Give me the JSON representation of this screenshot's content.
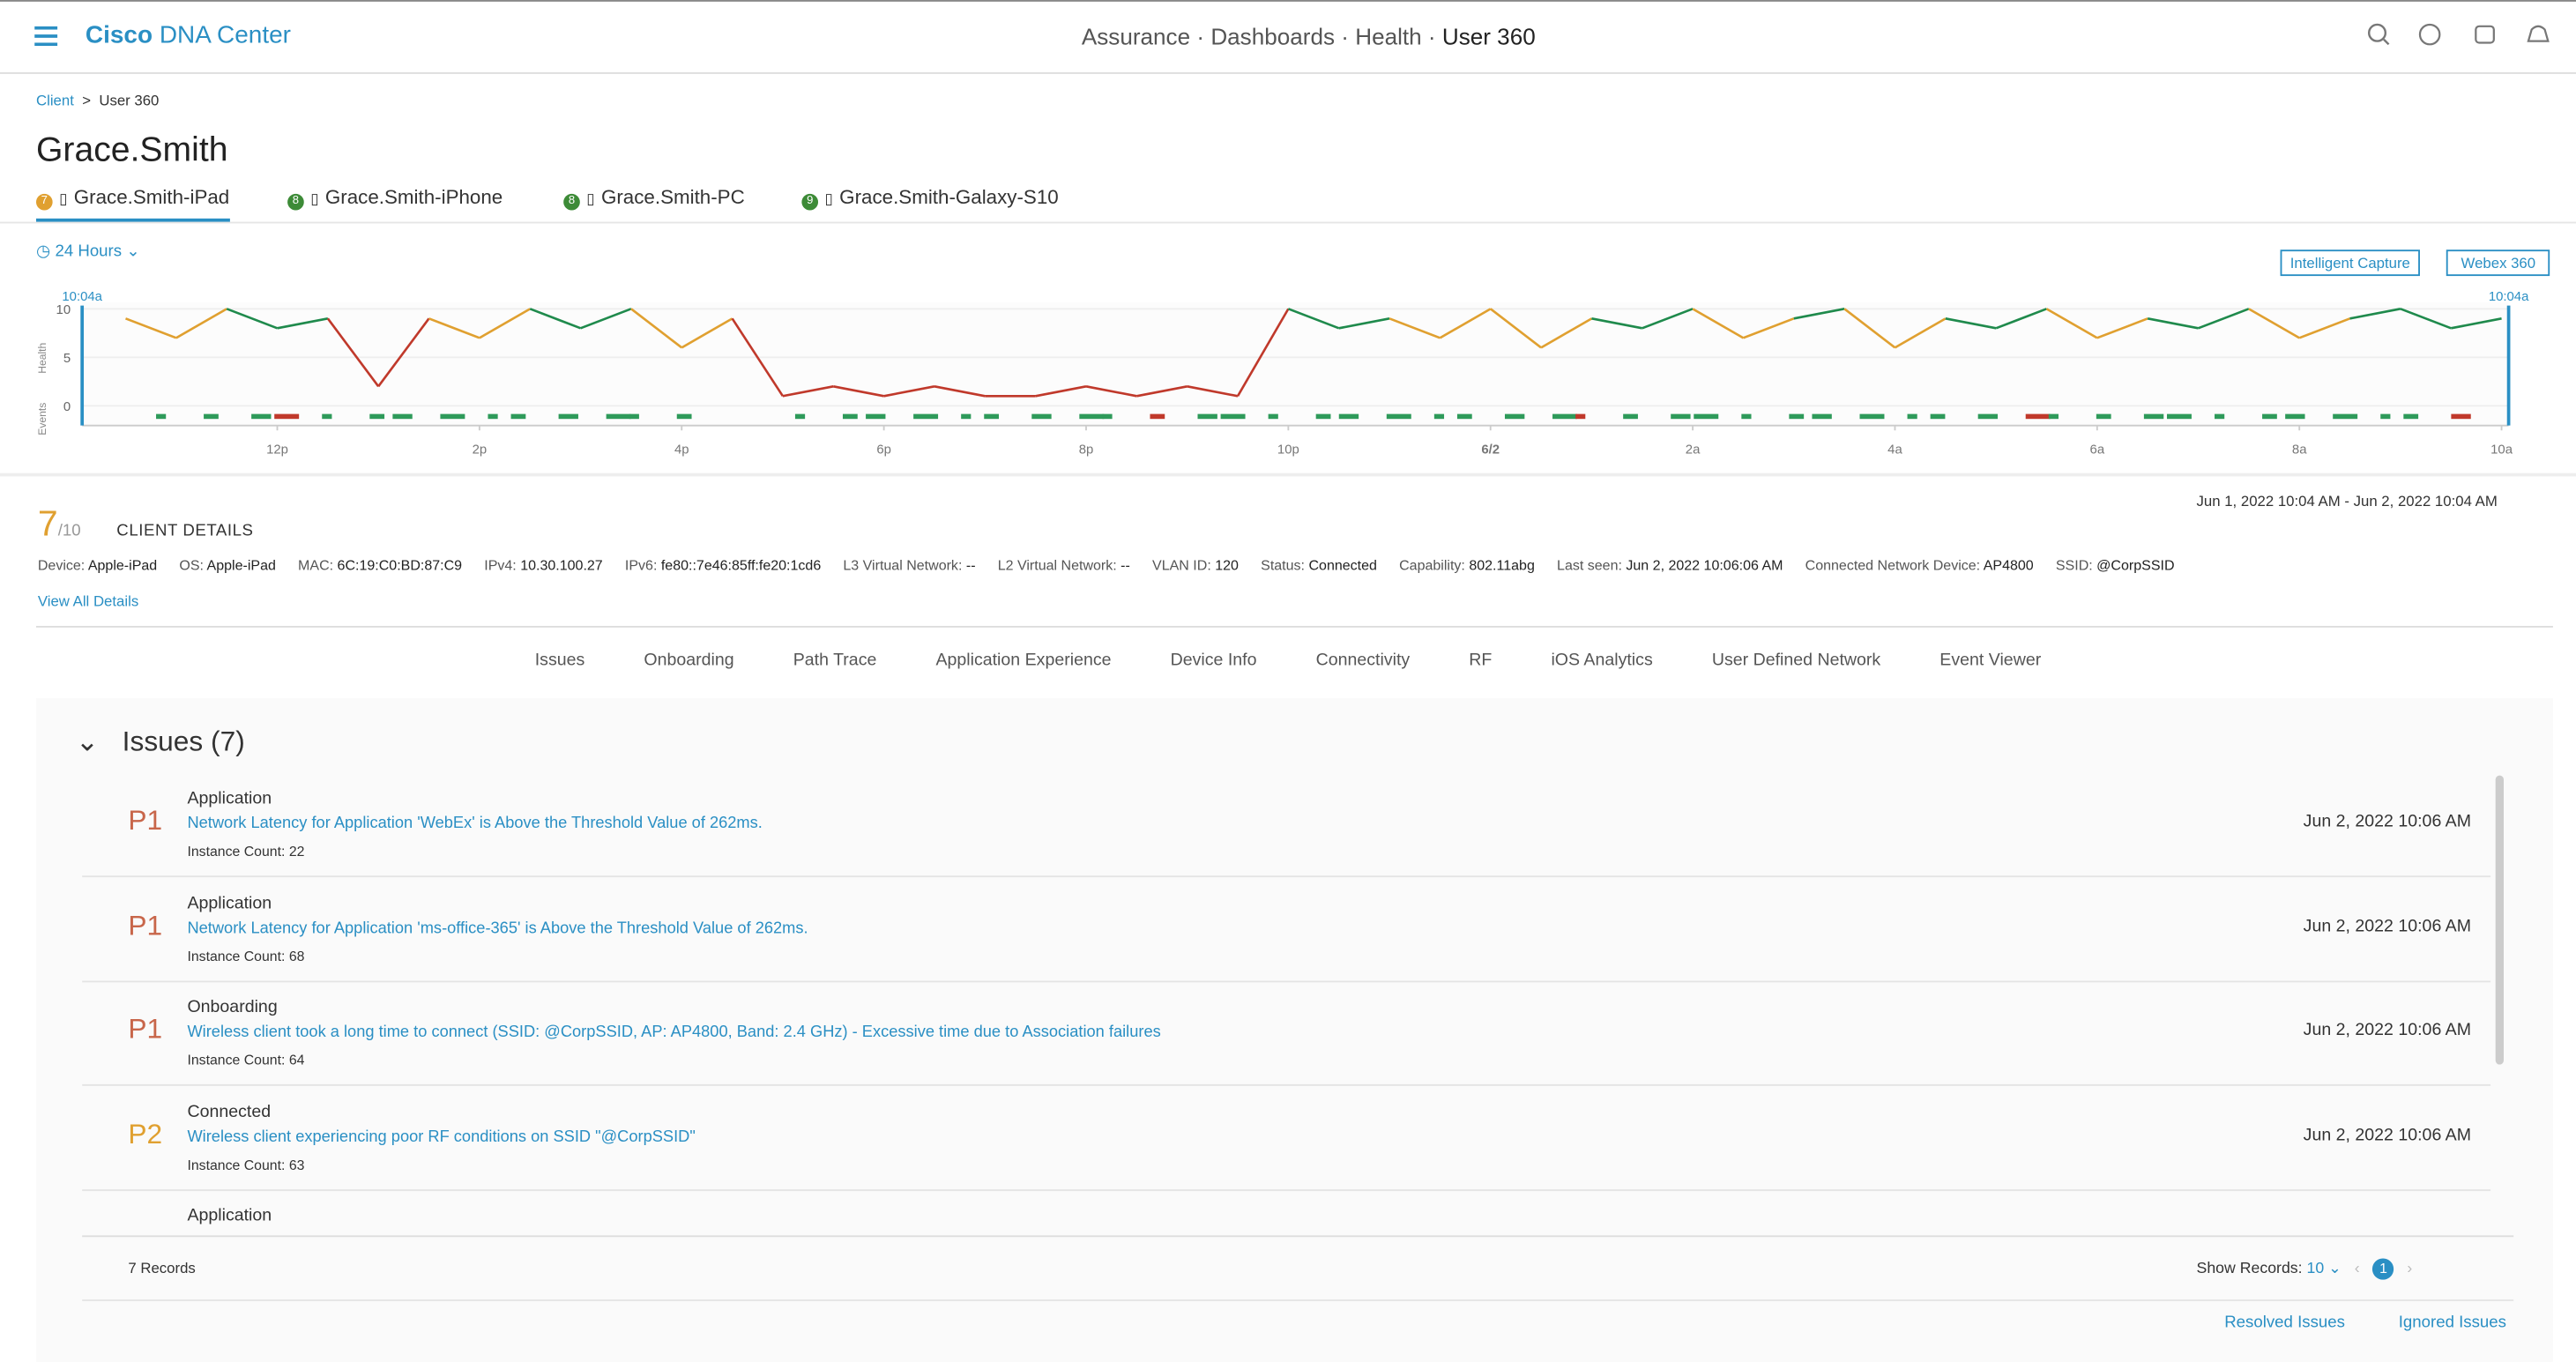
{
  "header": {
    "brand": "Cisco",
    "product": "DNA Center",
    "path": [
      "Assurance",
      "Dashboards",
      "Health",
      "User 360"
    ]
  },
  "breadcrumb": [
    "Client",
    "User 360"
  ],
  "user": "Grace.Smith",
  "devices": [
    {
      "score": 7,
      "name": "Grace.Smith-iPad"
    },
    {
      "score": 8,
      "name": "Grace.Smith-iPhone"
    },
    {
      "score": 8,
      "name": "Grace.Smith-PC"
    },
    {
      "score": 9,
      "name": "Grace.Smith-Galaxy-S10"
    }
  ],
  "time_range": "24 Hours",
  "buttons": [
    "Intelligent Capture",
    "Webex 360"
  ],
  "chart_data": {
    "type": "line",
    "start_label": "10:04a",
    "end_label": "10:04a",
    "y_label": "Health",
    "events_label": "Events",
    "x": [
      10.5,
      11,
      11.5,
      12,
      12.5,
      13,
      13.5,
      14,
      14.5,
      15,
      15.5,
      16,
      16.5,
      17,
      17.5,
      18,
      18.5,
      19,
      19.5,
      20,
      20.5,
      21,
      21.5,
      22,
      22.5,
      23,
      23.5,
      24,
      24.5,
      25,
      25.5,
      26,
      26.5,
      27,
      27.5,
      28,
      28.5,
      29,
      29.5,
      30,
      30.5,
      31,
      31.5,
      32,
      32.5,
      33,
      33.5,
      34
    ],
    "values": [
      9,
      7,
      10,
      8,
      9,
      2,
      9,
      7,
      10,
      8,
      10,
      6,
      9,
      1,
      2,
      1,
      2,
      1,
      1,
      2,
      1,
      2,
      1,
      10,
      8,
      9,
      7,
      10,
      6,
      9,
      8,
      10,
      7,
      9,
      10,
      6,
      9,
      8,
      10,
      7,
      9,
      8,
      10,
      7,
      9,
      10,
      8,
      9
    ],
    "xlim": [
      10.07,
      34.07
    ],
    "xticks": [
      {
        "value": 12,
        "label": "12p"
      },
      {
        "value": 14,
        "label": "2p"
      },
      {
        "value": 16,
        "label": "4p"
      },
      {
        "value": 18,
        "label": "6p"
      },
      {
        "value": 20,
        "label": "8p"
      },
      {
        "value": 22,
        "label": "10p"
      },
      {
        "value": 24,
        "label": "6/2"
      },
      {
        "value": 26,
        "label": "2a"
      },
      {
        "value": 28,
        "label": "4a"
      },
      {
        "value": 30,
        "label": "6a"
      },
      {
        "value": 32,
        "label": "8a"
      },
      {
        "value": 34,
        "label": "10a"
      }
    ],
    "ylim": [
      0,
      10
    ],
    "yticks": [
      0,
      5,
      10
    ],
    "color_scale": [
      {
        "min": 8,
        "color": "#1f8a4c"
      },
      {
        "min": 4,
        "color": "#e0a030"
      },
      {
        "min": 0,
        "color": "#c0392b"
      }
    ]
  },
  "client": {
    "score": 7,
    "score_max": "/10",
    "title": "CLIENT DETAILS",
    "date_range": "Jun 1, 2022 10:04 AM - Jun 2, 2022 10:04 AM",
    "fields": [
      {
        "label": "Device:",
        "value": "Apple-iPad"
      },
      {
        "label": "OS:",
        "value": "Apple-iPad"
      },
      {
        "label": "MAC:",
        "value": "6C:19:C0:BD:87:C9"
      },
      {
        "label": "IPv4:",
        "value": "10.30.100.27"
      },
      {
        "label": "IPv6:",
        "value": "fe80::7e46:85ff:fe20:1cd6"
      },
      {
        "label": "L3 Virtual Network:",
        "value": "--"
      },
      {
        "label": "L2 Virtual Network:",
        "value": "--"
      },
      {
        "label": "VLAN ID:",
        "value": "120"
      },
      {
        "label": "Status:",
        "value": "Connected"
      },
      {
        "label": "Capability:",
        "value": "802.11abg"
      },
      {
        "label": "Last seen:",
        "value": "Jun 2, 2022 10:06:06 AM"
      },
      {
        "label": "Connected Network Device:",
        "value": "AP4800"
      },
      {
        "label": "SSID:",
        "value": "@CorpSSID"
      }
    ],
    "view_all": "View All Details"
  },
  "tabs": [
    "Issues",
    "Onboarding",
    "Path Trace",
    "Application Experience",
    "Device Info",
    "Connectivity",
    "RF",
    "iOS Analytics",
    "User Defined Network",
    "Event Viewer"
  ],
  "issues": {
    "title": "Issues (7)",
    "instance_label": "Instance Count:",
    "items": [
      {
        "priority": "P1",
        "category": "Application",
        "description": "Network Latency for Application 'WebEx' is Above the Threshold Value of 262ms.",
        "count": 22,
        "date": "Jun 2, 2022 10:06 AM"
      },
      {
        "priority": "P1",
        "category": "Application",
        "description": "Network Latency for Application 'ms-office-365' is Above the Threshold Value of 262ms.",
        "count": 68,
        "date": "Jun 2, 2022 10:06 AM"
      },
      {
        "priority": "P1",
        "category": "Onboarding",
        "description": "Wireless client took a long time to connect (SSID: @CorpSSID, AP: AP4800, Band: 2.4 GHz) - Excessive time due to Association failures",
        "count": 64,
        "date": "Jun 2, 2022 10:06 AM"
      },
      {
        "priority": "P2",
        "category": "Connected",
        "description": "Wireless client experiencing poor RF conditions on SSID \"@CorpSSID\"",
        "count": 63,
        "date": "Jun 2, 2022 10:06 AM"
      }
    ],
    "partial_category": "Application",
    "records": "7 Records",
    "show_records": "Show Records:",
    "page_size": "10",
    "page": "1",
    "links": [
      "Resolved Issues",
      "Ignored Issues"
    ]
  }
}
